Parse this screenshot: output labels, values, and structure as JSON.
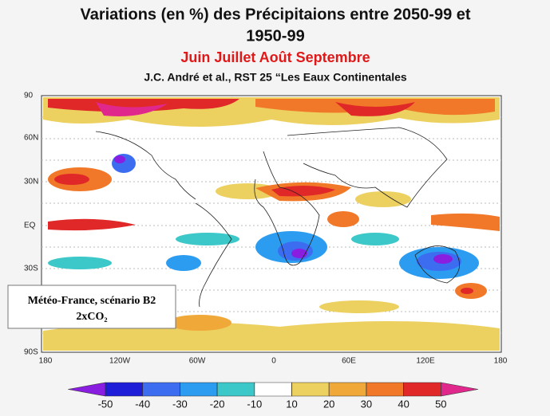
{
  "header": {
    "title_line1": "Variations (en %) des Précipitaions entre 2050-99 et",
    "title_line2": "1950-99",
    "season": "Juin Juillet Août Septembre",
    "citation": "J.C. André et al., RST 25 “Les Eaux Continentales"
  },
  "map": {
    "lat_labels": [
      "90",
      "60N",
      "30N",
      "EQ",
      "30S",
      "90S"
    ],
    "lon_labels": [
      "180",
      "120W",
      "60W",
      "0",
      "60E",
      "120E",
      "180"
    ]
  },
  "colorbar": {
    "levels": [
      -50,
      -40,
      -30,
      -20,
      -10,
      10,
      20,
      30,
      40,
      50
    ],
    "colors": [
      "#8a1ee0",
      "#1e1ed8",
      "#3c6cf0",
      "#2c9cf0",
      "#3cc8c8",
      "#ffffff",
      "#ecd060",
      "#f0a838",
      "#f07828",
      "#e02828",
      "#e0288c"
    ]
  },
  "note": {
    "line1": "Météo-France, scénario B2",
    "line2": "2xCO₂"
  }
}
